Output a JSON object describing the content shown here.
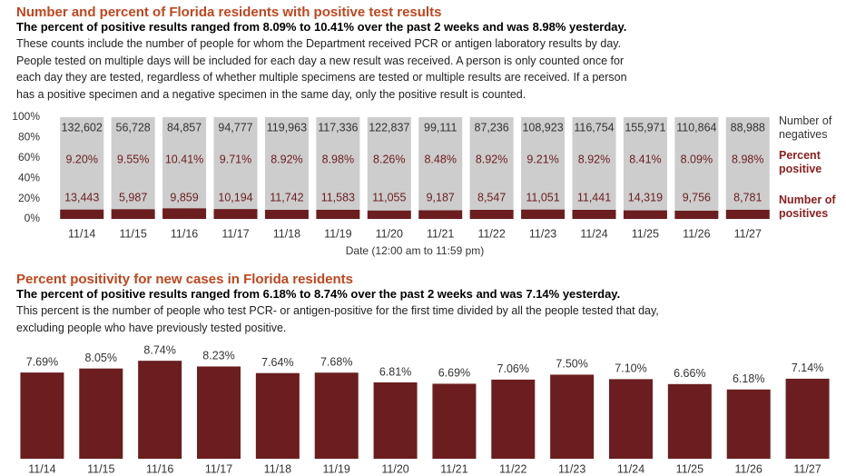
{
  "chart_data": [
    {
      "type": "stacked_percent",
      "title": "Number and percent of Florida residents with positive test results",
      "subtitle": "The percent of positive results ranged from 8.09% to 10.41% over the past 2 weeks and was 8.98% yesterday.",
      "notes": [
        "These counts include the number of people for whom the Department received PCR or antigen laboratory results by day.",
        "People tested on multiple days will be included for each day a new result was received. A person is only counted once for",
        "each day they are tested, regardless of whether multiple specimens are tested or multiple results are received. If a person",
        "has a positive specimen and a negative specimen in the same day, only the positive result is counted."
      ],
      "x_label": "Date (12:00 am to 11:59 pm)",
      "categories": [
        "11/14",
        "11/15",
        "11/16",
        "11/17",
        "11/18",
        "11/19",
        "11/20",
        "11/21",
        "11/22",
        "11/23",
        "11/24",
        "11/25",
        "11/26",
        "11/27"
      ],
      "series": [
        {
          "name": "Number of positives",
          "color": "#6b1d1f",
          "values": [
            13443,
            5987,
            9859,
            10194,
            11742,
            11583,
            11055,
            9187,
            8547,
            11051,
            11441,
            14319,
            9756,
            8781
          ],
          "value_labels": [
            "13,443",
            "5,987",
            "9,859",
            "10,194",
            "11,742",
            "11,583",
            "11,055",
            "9,187",
            "8,547",
            "11,051",
            "11,441",
            "14,319",
            "9,756",
            "8,781"
          ]
        },
        {
          "name": "Number of negatives",
          "color": "#cdcdcd",
          "values": [
            132602,
            56728,
            84857,
            94777,
            119963,
            117336,
            122837,
            99111,
            87236,
            108923,
            116754,
            155971,
            110864,
            88988
          ],
          "value_labels": [
            "132,602",
            "56,728",
            "84,857",
            "94,777",
            "119,963",
            "117,336",
            "122,837",
            "99,111",
            "87,236",
            "108,923",
            "116,754",
            "155,971",
            "110,864",
            "88,988"
          ]
        }
      ],
      "percent_positive": {
        "name": "Percent positive",
        "values": [
          9.2,
          9.55,
          10.41,
          9.71,
          8.92,
          8.98,
          8.26,
          8.48,
          8.92,
          9.21,
          8.92,
          8.41,
          8.09,
          8.98
        ],
        "value_labels": [
          "9.20%",
          "9.55%",
          "10.41%",
          "9.71%",
          "8.92%",
          "8.98%",
          "8.26%",
          "8.48%",
          "8.92%",
          "9.21%",
          "8.92%",
          "8.41%",
          "8.09%",
          "8.98%"
        ]
      },
      "ylim": [
        0,
        100
      ],
      "yticks": [
        {
          "value": 0,
          "label": "0%"
        },
        {
          "value": 20,
          "label": "20%"
        },
        {
          "value": 40,
          "label": "40%"
        },
        {
          "value": 60,
          "label": "60%"
        },
        {
          "value": 80,
          "label": "80%"
        },
        {
          "value": 100,
          "label": "100%"
        }
      ]
    },
    {
      "type": "bar",
      "title": "Percent positivity for new cases in Florida residents",
      "subtitle": "The percent of positive results ranged from 6.18% to 8.74% over the past 2 weeks and was 7.14% yesterday.",
      "notes": [
        "This percent is the number of people who test PCR- or antigen-positive for the first time divided by all the people tested that day,",
        "excluding people who have previously tested positive."
      ],
      "categories": [
        "11/14",
        "11/15",
        "11/16",
        "11/17",
        "11/18",
        "11/19",
        "11/20",
        "11/21",
        "11/22",
        "11/23",
        "11/24",
        "11/25",
        "11/26",
        "11/27"
      ],
      "values": [
        7.69,
        8.05,
        8.74,
        8.23,
        7.64,
        7.68,
        6.81,
        6.69,
        7.06,
        7.5,
        7.1,
        6.66,
        6.18,
        7.14
      ],
      "value_labels": [
        "7.69%",
        "8.05%",
        "8.74%",
        "8.23%",
        "7.64%",
        "7.68%",
        "6.81%",
        "6.69%",
        "7.06%",
        "7.50%",
        "7.10%",
        "6.66%",
        "6.18%",
        "7.14%"
      ],
      "color": "#6b1d1f",
      "ylim": [
        0,
        9.4
      ]
    }
  ]
}
